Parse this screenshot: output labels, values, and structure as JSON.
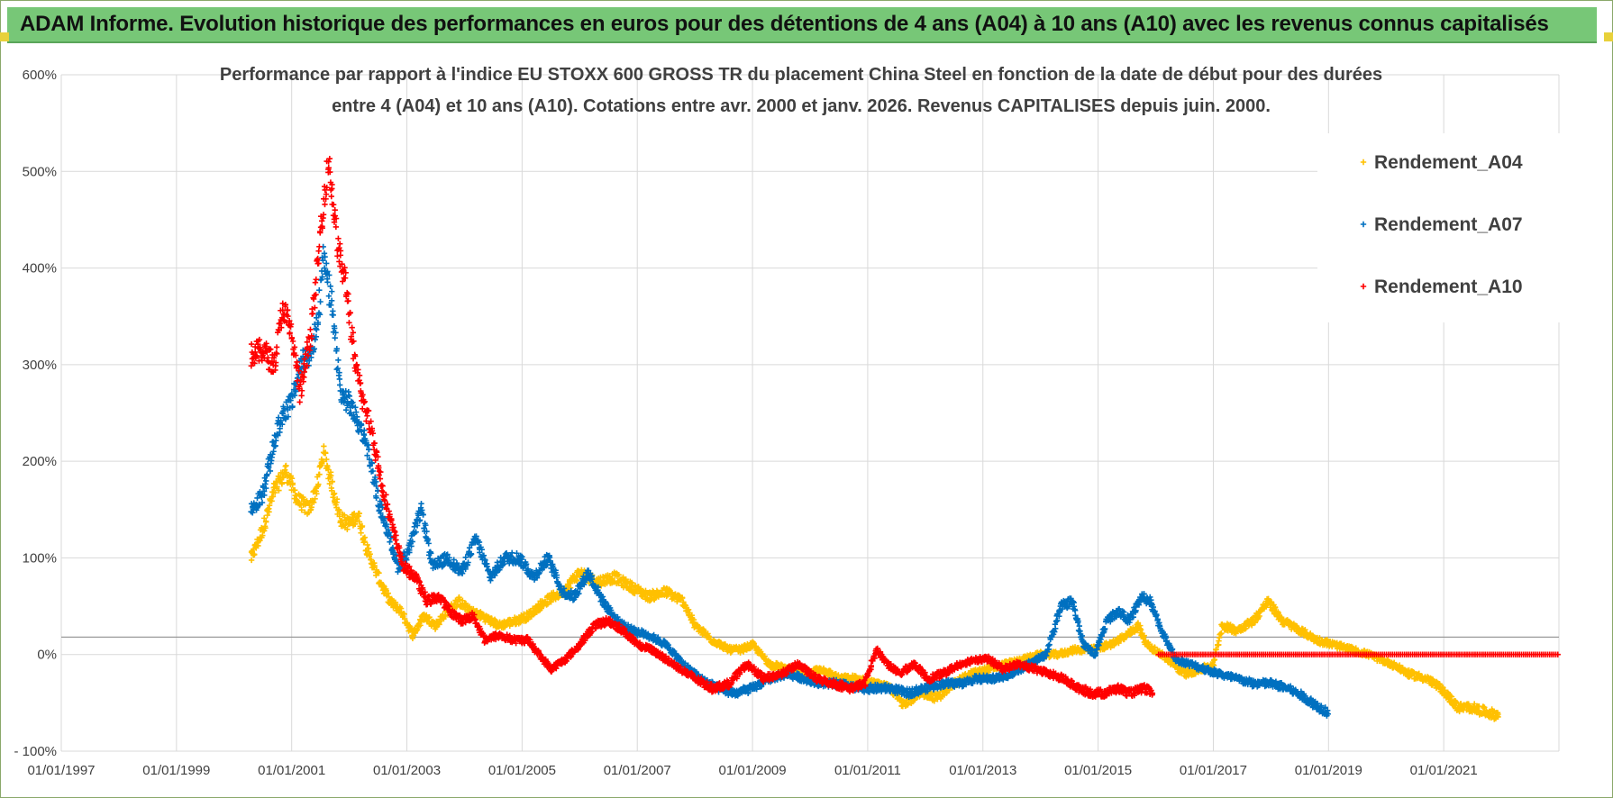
{
  "banner": {
    "title": "ADAM Informe. Evolution historique des performances en euros pour des détentions de 4 ans (A04) à 10 ans (A10) avec les revenus connus capitalisés"
  },
  "colors": {
    "banner_bg": "#77c777",
    "a04": "#ffc000",
    "a07": "#0070c0",
    "a10": "#ff0000"
  },
  "chart_data": {
    "type": "scatter",
    "title_lines": [
      "Performance par rapport à l'indice EU STOXX 600 GROSS TR  du placement China Steel  en fonction de la date de début pour des durées",
      "entre 4 (A04) et 10 ans (A10).  Cotations entre avr. 2000 et janv. 2026. Revenus CAPITALISES depuis juin. 2000."
    ],
    "xlabel": "",
    "ylabel": "",
    "xlim": [
      1997.0,
      2023.0
    ],
    "ylim": [
      -100,
      600
    ],
    "x_ticks": [
      {
        "value": 1997,
        "label": "01/01/1997"
      },
      {
        "value": 1999,
        "label": "01/01/1999"
      },
      {
        "value": 2001,
        "label": "01/01/2001"
      },
      {
        "value": 2003,
        "label": "01/01/2003"
      },
      {
        "value": 2005,
        "label": "01/01/2005"
      },
      {
        "value": 2007,
        "label": "01/01/2007"
      },
      {
        "value": 2009,
        "label": "01/01/2009"
      },
      {
        "value": 2011,
        "label": "01/01/2011"
      },
      {
        "value": 2013,
        "label": "01/01/2013"
      },
      {
        "value": 2015,
        "label": "01/01/2015"
      },
      {
        "value": 2017,
        "label": "01/01/2017"
      },
      {
        "value": 2019,
        "label": "01/01/2019"
      },
      {
        "value": 2021,
        "label": "01/01/2021"
      }
    ],
    "y_ticks": [
      {
        "value": 600,
        "label": "600%"
      },
      {
        "value": 500,
        "label": "500%"
      },
      {
        "value": 400,
        "label": "400%"
      },
      {
        "value": 300,
        "label": "300%"
      },
      {
        "value": 200,
        "label": "200%"
      },
      {
        "value": 100,
        "label": "100%"
      },
      {
        "value": 0,
        "label": "0%"
      },
      {
        "value": -100,
        "label": "- 100%"
      }
    ],
    "legend_position": "top-right",
    "marker": "+",
    "series": [
      {
        "name": "Rendement_A04",
        "color": "#ffc000",
        "points": [
          [
            2000.3,
            100
          ],
          [
            2000.5,
            130
          ],
          [
            2000.7,
            170
          ],
          [
            2000.9,
            190
          ],
          [
            2001.1,
            160
          ],
          [
            2001.3,
            150
          ],
          [
            2001.45,
            175
          ],
          [
            2001.55,
            210
          ],
          [
            2001.7,
            175
          ],
          [
            2001.85,
            140
          ],
          [
            2002.0,
            135
          ],
          [
            2002.15,
            145
          ],
          [
            2002.3,
            110
          ],
          [
            2002.5,
            80
          ],
          [
            2002.7,
            55
          ],
          [
            2002.9,
            45
          ],
          [
            2003.1,
            20
          ],
          [
            2003.3,
            40
          ],
          [
            2003.5,
            30
          ],
          [
            2003.7,
            45
          ],
          [
            2003.9,
            55
          ],
          [
            2004.1,
            45
          ],
          [
            2004.3,
            40
          ],
          [
            2004.6,
            30
          ],
          [
            2004.9,
            35
          ],
          [
            2005.1,
            40
          ],
          [
            2005.4,
            55
          ],
          [
            2005.7,
            65
          ],
          [
            2006.0,
            85
          ],
          [
            2006.3,
            75
          ],
          [
            2006.6,
            80
          ],
          [
            2006.9,
            70
          ],
          [
            2007.2,
            60
          ],
          [
            2007.5,
            65
          ],
          [
            2007.8,
            55
          ],
          [
            2008.0,
            30
          ],
          [
            2008.3,
            15
          ],
          [
            2008.6,
            5
          ],
          [
            2008.8,
            5
          ],
          [
            2009.0,
            10
          ],
          [
            2009.3,
            -10
          ],
          [
            2009.6,
            -15
          ],
          [
            2009.9,
            -20
          ],
          [
            2010.2,
            -15
          ],
          [
            2010.5,
            -25
          ],
          [
            2010.8,
            -25
          ],
          [
            2011.1,
            -30
          ],
          [
            2011.4,
            -35
          ],
          [
            2011.6,
            -50
          ],
          [
            2011.8,
            -45
          ],
          [
            2012.0,
            -40
          ],
          [
            2012.2,
            -45
          ],
          [
            2012.5,
            -30
          ],
          [
            2012.8,
            -20
          ],
          [
            2013.1,
            -15
          ],
          [
            2013.4,
            -10
          ],
          [
            2013.7,
            -5
          ],
          [
            2014.0,
            0
          ],
          [
            2014.3,
            0
          ],
          [
            2014.6,
            5
          ],
          [
            2014.9,
            5
          ],
          [
            2015.2,
            10
          ],
          [
            2015.5,
            20
          ],
          [
            2015.7,
            30
          ],
          [
            2015.85,
            10
          ],
          [
            2016.1,
            0
          ],
          [
            2016.3,
            -10
          ],
          [
            2016.5,
            -20
          ],
          [
            2016.8,
            -15
          ],
          [
            2017.0,
            -10
          ],
          [
            2017.15,
            30
          ],
          [
            2017.4,
            25
          ],
          [
            2017.7,
            35
          ],
          [
            2017.95,
            55
          ],
          [
            2018.2,
            35
          ],
          [
            2018.5,
            25
          ],
          [
            2018.8,
            15
          ],
          [
            2019.1,
            10
          ],
          [
            2019.4,
            5
          ],
          [
            2019.7,
            0
          ],
          [
            2019.9,
            -5
          ],
          [
            2020.1,
            -10
          ],
          [
            2020.4,
            -20
          ],
          [
            2020.7,
            -25
          ],
          [
            2020.95,
            -35
          ],
          [
            2021.1,
            -45
          ],
          [
            2021.25,
            -55
          ],
          [
            2021.5,
            -55
          ],
          [
            2021.75,
            -60
          ],
          [
            2021.95,
            -63
          ]
        ]
      },
      {
        "name": "Rendement_A07",
        "color": "#0070c0",
        "points": [
          [
            2000.3,
            150
          ],
          [
            2000.5,
            165
          ],
          [
            2000.7,
            220
          ],
          [
            2000.85,
            250
          ],
          [
            2001.0,
            260
          ],
          [
            2001.15,
            300
          ],
          [
            2001.3,
            310
          ],
          [
            2001.45,
            340
          ],
          [
            2001.55,
            410
          ],
          [
            2001.7,
            360
          ],
          [
            2001.85,
            270
          ],
          [
            2002.0,
            260
          ],
          [
            2002.15,
            240
          ],
          [
            2002.3,
            220
          ],
          [
            2002.5,
            160
          ],
          [
            2002.7,
            120
          ],
          [
            2002.85,
            90
          ],
          [
            2003.05,
            110
          ],
          [
            2003.25,
            150
          ],
          [
            2003.45,
            90
          ],
          [
            2003.7,
            100
          ],
          [
            2003.95,
            85
          ],
          [
            2004.2,
            120
          ],
          [
            2004.45,
            80
          ],
          [
            2004.7,
            100
          ],
          [
            2004.95,
            100
          ],
          [
            2005.2,
            80
          ],
          [
            2005.45,
            100
          ],
          [
            2005.7,
            65
          ],
          [
            2005.9,
            60
          ],
          [
            2006.15,
            85
          ],
          [
            2006.4,
            55
          ],
          [
            2006.65,
            35
          ],
          [
            2006.9,
            25
          ],
          [
            2007.2,
            20
          ],
          [
            2007.5,
            10
          ],
          [
            2007.8,
            -10
          ],
          [
            2008.1,
            -25
          ],
          [
            2008.4,
            -35
          ],
          [
            2008.7,
            -40
          ],
          [
            2009.0,
            -35
          ],
          [
            2009.3,
            -25
          ],
          [
            2009.6,
            -20
          ],
          [
            2009.9,
            -25
          ],
          [
            2010.2,
            -30
          ],
          [
            2010.5,
            -30
          ],
          [
            2010.8,
            -35
          ],
          [
            2011.1,
            -35
          ],
          [
            2011.4,
            -35
          ],
          [
            2011.7,
            -40
          ],
          [
            2012.0,
            -35
          ],
          [
            2012.3,
            -30
          ],
          [
            2012.6,
            -30
          ],
          [
            2012.9,
            -25
          ],
          [
            2013.2,
            -25
          ],
          [
            2013.5,
            -20
          ],
          [
            2013.8,
            -10
          ],
          [
            2014.1,
            0
          ],
          [
            2014.35,
            50
          ],
          [
            2014.55,
            55
          ],
          [
            2014.75,
            10
          ],
          [
            2014.95,
            0
          ],
          [
            2015.15,
            35
          ],
          [
            2015.35,
            45
          ],
          [
            2015.55,
            35
          ],
          [
            2015.75,
            60
          ],
          [
            2015.9,
            55
          ],
          [
            2016.1,
            25
          ],
          [
            2016.35,
            -5
          ],
          [
            2016.6,
            -10
          ],
          [
            2016.85,
            -15
          ],
          [
            2017.1,
            -20
          ],
          [
            2017.4,
            -25
          ],
          [
            2017.7,
            -30
          ],
          [
            2018.0,
            -30
          ],
          [
            2018.3,
            -35
          ],
          [
            2018.6,
            -45
          ],
          [
            2018.85,
            -55
          ],
          [
            2019.0,
            -60
          ]
        ]
      },
      {
        "name": "Rendement_A10",
        "color": "#ff0000",
        "points": [
          [
            2000.3,
            310
          ],
          [
            2000.5,
            315
          ],
          [
            2000.7,
            300
          ],
          [
            2000.85,
            360
          ],
          [
            2001.0,
            330
          ],
          [
            2001.15,
            270
          ],
          [
            2001.3,
            320
          ],
          [
            2001.4,
            370
          ],
          [
            2001.55,
            470
          ],
          [
            2001.65,
            510
          ],
          [
            2001.8,
            420
          ],
          [
            2001.95,
            380
          ],
          [
            2002.1,
            300
          ],
          [
            2002.25,
            260
          ],
          [
            2002.4,
            230
          ],
          [
            2002.55,
            180
          ],
          [
            2002.75,
            130
          ],
          [
            2002.95,
            90
          ],
          [
            2003.15,
            80
          ],
          [
            2003.35,
            55
          ],
          [
            2003.55,
            60
          ],
          [
            2003.75,
            45
          ],
          [
            2003.95,
            35
          ],
          [
            2004.15,
            40
          ],
          [
            2004.35,
            15
          ],
          [
            2004.6,
            20
          ],
          [
            2004.85,
            15
          ],
          [
            2005.1,
            15
          ],
          [
            2005.3,
            0
          ],
          [
            2005.5,
            -15
          ],
          [
            2005.75,
            -5
          ],
          [
            2006.0,
            10
          ],
          [
            2006.25,
            30
          ],
          [
            2006.5,
            35
          ],
          [
            2006.75,
            25
          ],
          [
            2007.0,
            10
          ],
          [
            2007.25,
            5
          ],
          [
            2007.5,
            -5
          ],
          [
            2007.75,
            -15
          ],
          [
            2008.0,
            -25
          ],
          [
            2008.3,
            -35
          ],
          [
            2008.6,
            -30
          ],
          [
            2008.9,
            -10
          ],
          [
            2009.2,
            -25
          ],
          [
            2009.5,
            -20
          ],
          [
            2009.8,
            -10
          ],
          [
            2010.1,
            -25
          ],
          [
            2010.4,
            -30
          ],
          [
            2010.7,
            -35
          ],
          [
            2010.95,
            -30
          ],
          [
            2011.15,
            5
          ],
          [
            2011.35,
            -10
          ],
          [
            2011.55,
            -20
          ],
          [
            2011.8,
            -10
          ],
          [
            2012.05,
            -25
          ],
          [
            2012.3,
            -20
          ],
          [
            2012.6,
            -10
          ],
          [
            2012.85,
            -5
          ],
          [
            2013.1,
            -5
          ],
          [
            2013.35,
            -15
          ],
          [
            2013.6,
            -10
          ],
          [
            2013.9,
            -15
          ],
          [
            2014.15,
            -20
          ],
          [
            2014.4,
            -25
          ],
          [
            2014.65,
            -35
          ],
          [
            2014.9,
            -40
          ],
          [
            2015.1,
            -40
          ],
          [
            2015.35,
            -35
          ],
          [
            2015.55,
            -40
          ],
          [
            2015.8,
            -35
          ],
          [
            2015.95,
            -40
          ]
        ],
        "flat_segment": {
          "from": 2016.05,
          "to": 2023.0,
          "value": 0
        }
      }
    ]
  }
}
